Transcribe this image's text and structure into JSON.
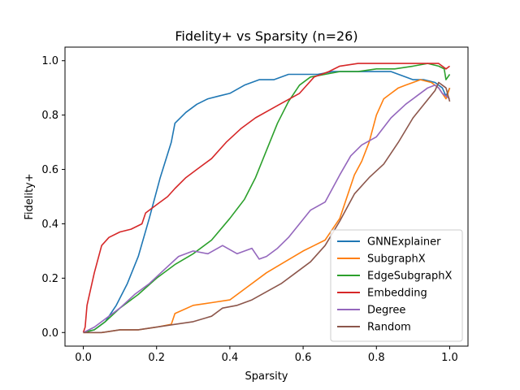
{
  "chart_data": {
    "type": "line",
    "title": "Fidelity+ vs Sparsity (n=26)",
    "xlabel": "Sparsity",
    "ylabel": "Fidelity+",
    "xlim": [
      -0.05,
      1.05
    ],
    "ylim": [
      -0.05,
      1.05
    ],
    "xticks": [
      0.0,
      0.2,
      0.4,
      0.6,
      0.8,
      1.0
    ],
    "yticks": [
      0.0,
      0.2,
      0.4,
      0.6,
      0.8,
      1.0
    ],
    "xtick_labels": [
      "0.0",
      "0.2",
      "0.4",
      "0.6",
      "0.8",
      "1.0"
    ],
    "ytick_labels": [
      "0.0",
      "0.2",
      "0.4",
      "0.6",
      "0.8",
      "1.0"
    ],
    "grid": false,
    "legend_position": "lower-right",
    "series": [
      {
        "name": "GNNExplainer",
        "color": "#1f77b4",
        "x": [
          0.0,
          0.03,
          0.06,
          0.09,
          0.12,
          0.15,
          0.18,
          0.21,
          0.24,
          0.25,
          0.28,
          0.31,
          0.34,
          0.37,
          0.4,
          0.44,
          0.48,
          0.52,
          0.56,
          0.6,
          0.64,
          0.68,
          0.72,
          0.76,
          0.8,
          0.84,
          0.88,
          0.9,
          0.93,
          0.96,
          0.98,
          0.99,
          1.0
        ],
        "y": [
          0.0,
          0.01,
          0.04,
          0.1,
          0.18,
          0.28,
          0.42,
          0.57,
          0.7,
          0.77,
          0.81,
          0.84,
          0.86,
          0.87,
          0.88,
          0.91,
          0.93,
          0.93,
          0.95,
          0.95,
          0.95,
          0.96,
          0.96,
          0.96,
          0.96,
          0.96,
          0.94,
          0.93,
          0.93,
          0.92,
          0.9,
          0.87,
          0.9
        ]
      },
      {
        "name": "SubgraphX",
        "color": "#ff7f0e",
        "x": [
          0.0,
          0.05,
          0.1,
          0.15,
          0.2,
          0.24,
          0.25,
          0.3,
          0.35,
          0.4,
          0.45,
          0.5,
          0.55,
          0.6,
          0.63,
          0.66,
          0.68,
          0.7,
          0.72,
          0.74,
          0.76,
          0.78,
          0.8,
          0.82,
          0.84,
          0.86,
          0.88,
          0.9,
          0.92,
          0.95,
          0.97,
          0.98,
          0.99,
          1.0
        ],
        "y": [
          0.0,
          0.0,
          0.01,
          0.01,
          0.02,
          0.03,
          0.07,
          0.1,
          0.11,
          0.12,
          0.17,
          0.22,
          0.26,
          0.3,
          0.32,
          0.34,
          0.38,
          0.42,
          0.5,
          0.58,
          0.63,
          0.7,
          0.8,
          0.86,
          0.88,
          0.9,
          0.91,
          0.92,
          0.93,
          0.92,
          0.9,
          0.88,
          0.86,
          0.9
        ]
      },
      {
        "name": "EdgeSubgraphX",
        "color": "#2ca02c",
        "x": [
          0.0,
          0.03,
          0.06,
          0.1,
          0.15,
          0.2,
          0.25,
          0.3,
          0.35,
          0.4,
          0.44,
          0.47,
          0.5,
          0.53,
          0.56,
          0.59,
          0.62,
          0.66,
          0.7,
          0.75,
          0.8,
          0.85,
          0.9,
          0.94,
          0.97,
          0.985,
          0.99,
          1.0
        ],
        "y": [
          0.0,
          0.01,
          0.04,
          0.09,
          0.14,
          0.2,
          0.25,
          0.29,
          0.34,
          0.42,
          0.49,
          0.57,
          0.67,
          0.77,
          0.85,
          0.91,
          0.94,
          0.95,
          0.96,
          0.96,
          0.97,
          0.97,
          0.98,
          0.99,
          0.98,
          0.97,
          0.93,
          0.95
        ]
      },
      {
        "name": "Embedding",
        "color": "#d62728",
        "x": [
          0.0,
          0.005,
          0.01,
          0.02,
          0.03,
          0.04,
          0.05,
          0.07,
          0.1,
          0.13,
          0.16,
          0.17,
          0.2,
          0.23,
          0.25,
          0.28,
          0.31,
          0.35,
          0.39,
          0.43,
          0.47,
          0.51,
          0.55,
          0.59,
          0.63,
          0.67,
          0.7,
          0.75,
          0.8,
          0.85,
          0.9,
          0.94,
          0.97,
          0.99,
          1.0
        ],
        "y": [
          0.0,
          0.02,
          0.1,
          0.16,
          0.22,
          0.27,
          0.32,
          0.35,
          0.37,
          0.38,
          0.4,
          0.44,
          0.47,
          0.5,
          0.53,
          0.57,
          0.6,
          0.64,
          0.7,
          0.75,
          0.79,
          0.82,
          0.85,
          0.88,
          0.94,
          0.96,
          0.98,
          0.99,
          0.99,
          0.99,
          0.99,
          0.99,
          0.99,
          0.97,
          0.98
        ]
      },
      {
        "name": "Degree",
        "color": "#9467bd",
        "x": [
          0.0,
          0.03,
          0.06,
          0.1,
          0.14,
          0.18,
          0.22,
          0.26,
          0.3,
          0.34,
          0.38,
          0.42,
          0.46,
          0.48,
          0.5,
          0.53,
          0.56,
          0.59,
          0.62,
          0.66,
          0.7,
          0.73,
          0.76,
          0.8,
          0.84,
          0.88,
          0.91,
          0.94,
          0.96,
          0.97,
          0.98,
          0.99,
          1.0
        ],
        "y": [
          0.0,
          0.02,
          0.05,
          0.09,
          0.14,
          0.18,
          0.23,
          0.28,
          0.3,
          0.29,
          0.32,
          0.29,
          0.31,
          0.27,
          0.28,
          0.31,
          0.35,
          0.4,
          0.45,
          0.48,
          0.58,
          0.65,
          0.69,
          0.72,
          0.79,
          0.84,
          0.87,
          0.9,
          0.91,
          0.9,
          0.88,
          0.87,
          0.86
        ]
      },
      {
        "name": "Random",
        "color": "#8c564b",
        "x": [
          0.0,
          0.05,
          0.1,
          0.15,
          0.2,
          0.25,
          0.3,
          0.35,
          0.38,
          0.42,
          0.46,
          0.5,
          0.54,
          0.58,
          0.62,
          0.66,
          0.7,
          0.74,
          0.78,
          0.82,
          0.86,
          0.9,
          0.93,
          0.96,
          0.97,
          0.98,
          0.99,
          1.0
        ],
        "y": [
          0.0,
          0.0,
          0.01,
          0.01,
          0.02,
          0.03,
          0.04,
          0.06,
          0.09,
          0.1,
          0.12,
          0.15,
          0.18,
          0.22,
          0.26,
          0.32,
          0.41,
          0.51,
          0.57,
          0.62,
          0.7,
          0.79,
          0.84,
          0.89,
          0.92,
          0.91,
          0.9,
          0.85
        ]
      }
    ]
  }
}
